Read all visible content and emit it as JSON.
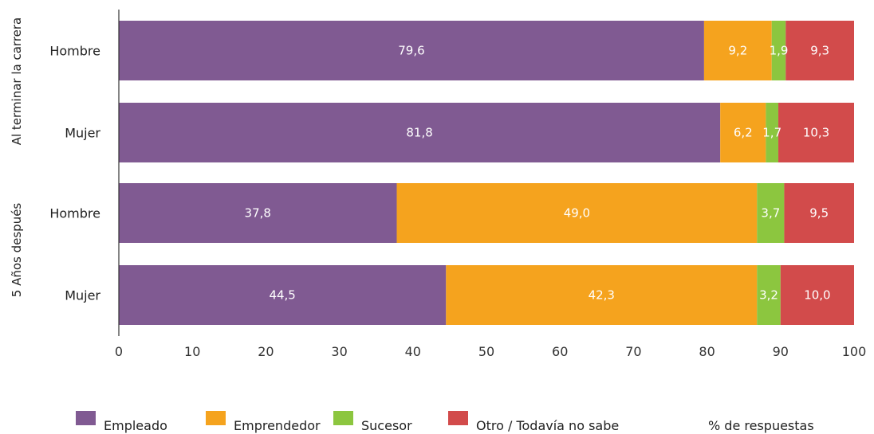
{
  "chart_data": {
    "type": "bar",
    "orientation": "horizontal",
    "stacked": true,
    "xlim": [
      0,
      100
    ],
    "xticks": [
      0,
      10,
      20,
      30,
      40,
      50,
      60,
      70,
      80,
      90,
      100
    ],
    "unit_note": "% de respuestas",
    "groups": [
      {
        "label": "Al terminar la carrera",
        "categories": [
          "Hombre",
          "Mujer"
        ]
      },
      {
        "label": "5 Años después",
        "categories": [
          "Hombre",
          "Mujer"
        ]
      }
    ],
    "categories": [
      "Hombre",
      "Mujer",
      "Hombre",
      "Mujer"
    ],
    "series": [
      {
        "name": "Empleado",
        "color": "#805a92",
        "values": [
          79.6,
          81.8,
          37.8,
          44.5
        ],
        "labels": [
          "79,6",
          "81,8",
          "37,8",
          "44,5"
        ]
      },
      {
        "name": "Emprendedor",
        "color": "#f5a31e",
        "values": [
          9.2,
          6.2,
          49.0,
          42.3
        ],
        "labels": [
          "9,2",
          "6,2",
          "49,0",
          "42,3"
        ]
      },
      {
        "name": "Sucesor",
        "color": "#8cc63f",
        "values": [
          1.9,
          1.7,
          3.7,
          3.2
        ],
        "labels": [
          "1,9",
          "1,7",
          "3,7",
          "3,2"
        ]
      },
      {
        "name": "Otro / Todavía no sabe",
        "color": "#d24b4b",
        "values": [
          9.3,
          10.3,
          9.5,
          10.0
        ],
        "labels": [
          "9,3",
          "10,3",
          "9,5",
          "10,0"
        ]
      }
    ],
    "grid": false,
    "legend_position": "bottom"
  }
}
